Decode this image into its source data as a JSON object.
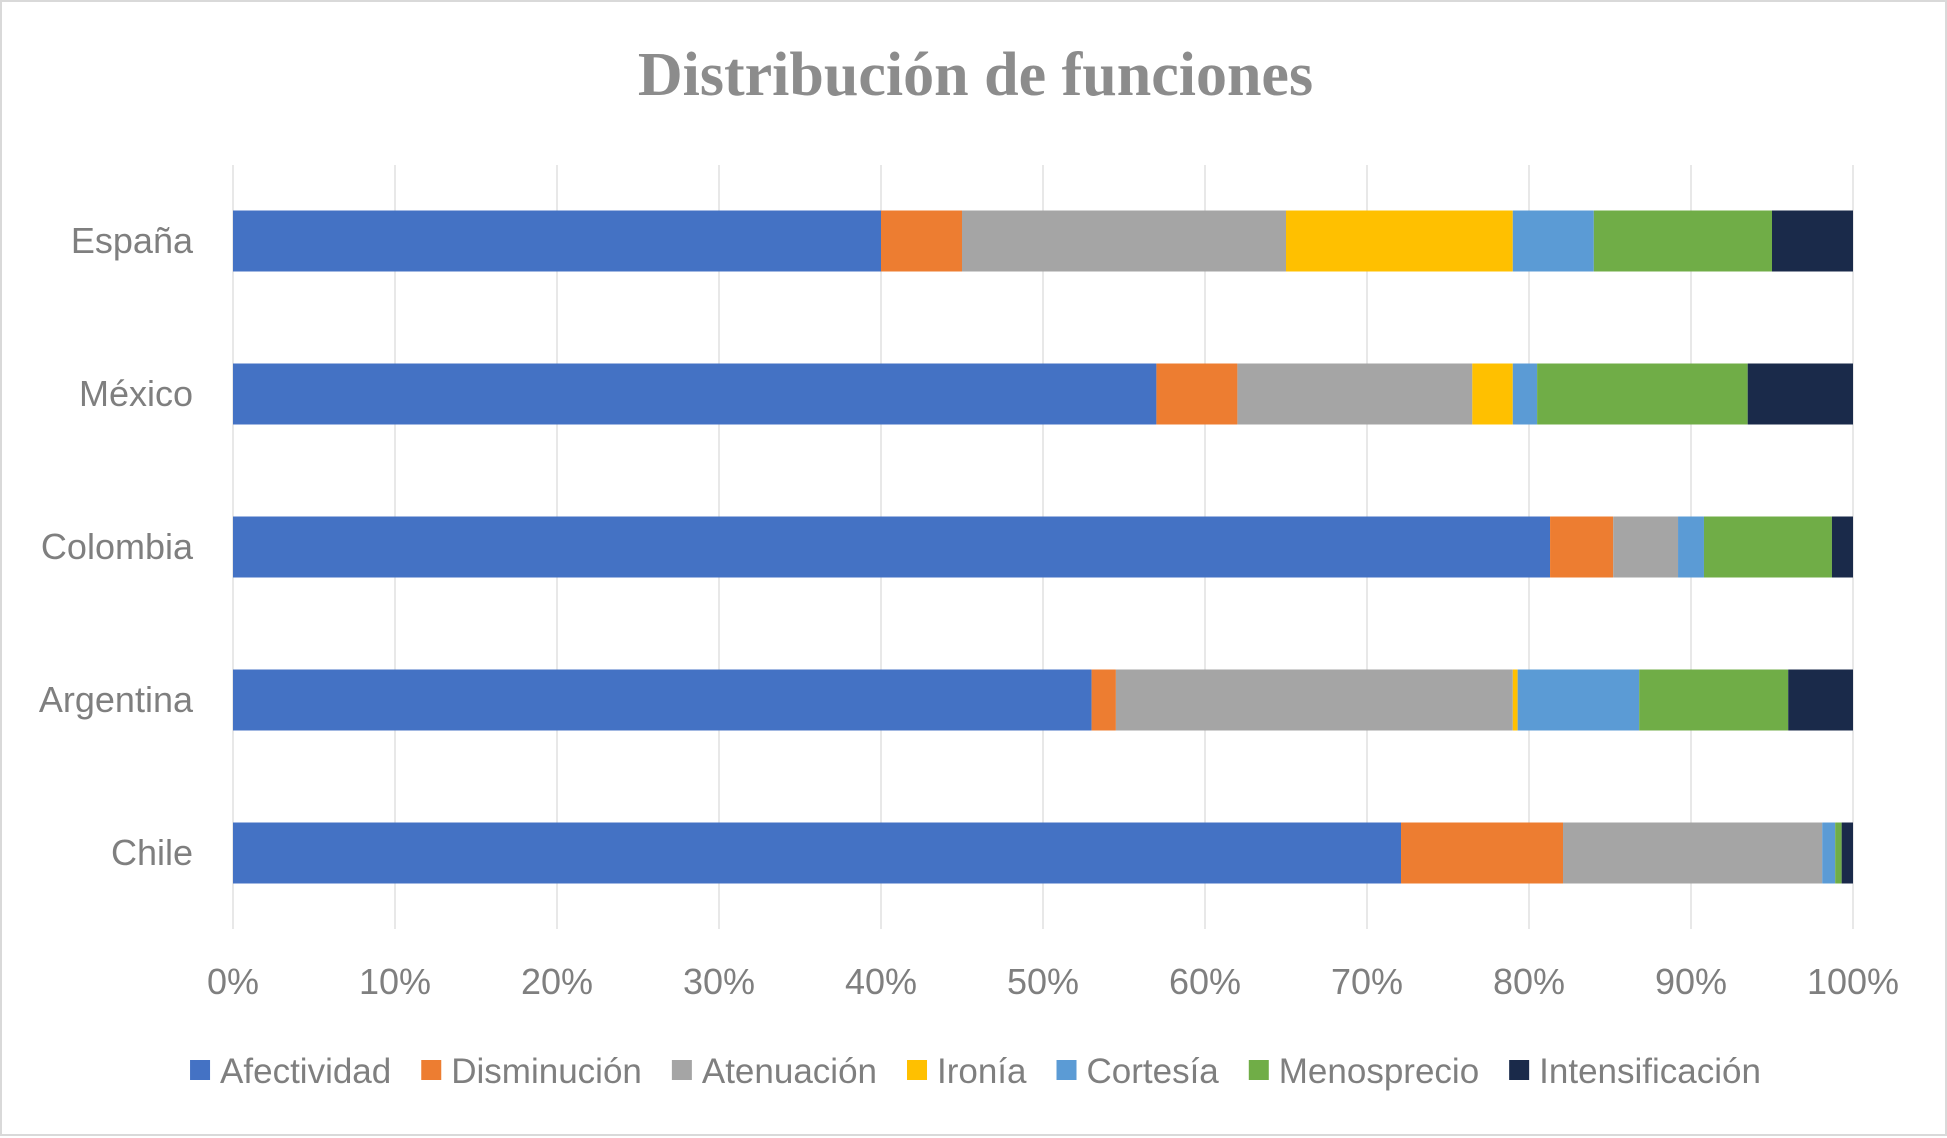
{
  "chart_data": {
    "type": "bar",
    "orientation": "horizontal",
    "stacked": "percent",
    "title": "Distribución de funciones",
    "xlabel": "",
    "ylabel": "",
    "xlim": [
      0,
      100
    ],
    "x_ticks": [
      "0%",
      "10%",
      "20%",
      "30%",
      "40%",
      "50%",
      "60%",
      "70%",
      "80%",
      "90%",
      "100%"
    ],
    "grid": true,
    "legend_position": "bottom",
    "categories": [
      "España",
      "México",
      "Colombia",
      "Argentina",
      "Chile"
    ],
    "series": [
      {
        "name": "Afectividad",
        "color": "#4472c4",
        "values": [
          40.0,
          57.0,
          81.3,
          53.0,
          72.1
        ]
      },
      {
        "name": "Disminución",
        "color": "#ed7d31",
        "values": [
          5.0,
          5.0,
          3.9,
          1.5,
          10.0
        ]
      },
      {
        "name": "Atenuación",
        "color": "#a5a5a5",
        "values": [
          20.0,
          14.5,
          4.0,
          24.5,
          16.0
        ]
      },
      {
        "name": "Ironía",
        "color": "#ffc000",
        "values": [
          14.0,
          2.5,
          0.0,
          0.3,
          0.0
        ]
      },
      {
        "name": "Cortesía",
        "color": "#5b9bd5",
        "values": [
          5.0,
          1.5,
          1.6,
          7.5,
          0.8
        ]
      },
      {
        "name": "Menosprecio",
        "color": "#70ad47",
        "values": [
          11.0,
          13.0,
          7.9,
          9.2,
          0.4
        ]
      },
      {
        "name": "Intensificación",
        "color": "#1a2a4a",
        "values": [
          5.0,
          6.5,
          1.3,
          4.0,
          0.7
        ]
      }
    ]
  }
}
